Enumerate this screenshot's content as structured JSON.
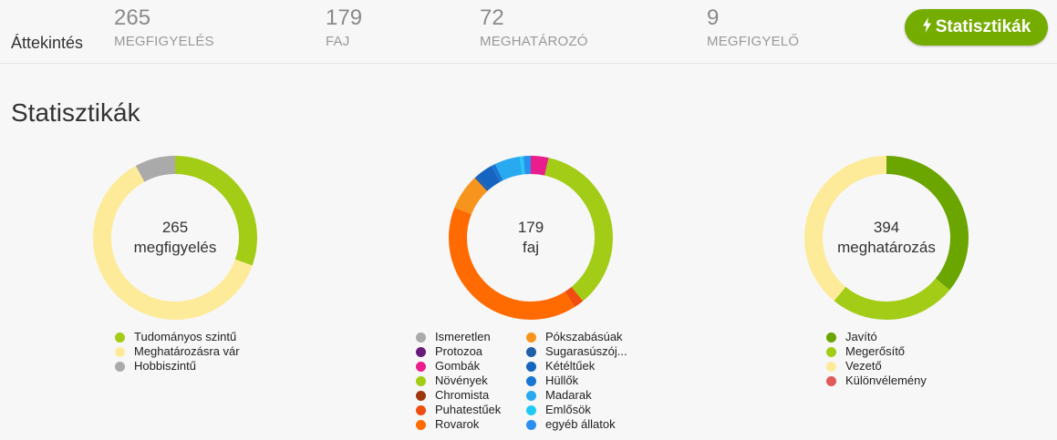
{
  "header": {
    "overview_label": "Áttekintés",
    "stats": [
      {
        "value": "265",
        "label": "MEGFIGYELÉS"
      },
      {
        "value": "179",
        "label": "FAJ"
      },
      {
        "value": "72",
        "label": "MEGHATÁROZÓ"
      },
      {
        "value": "9",
        "label": "MEGFIGYELŐ"
      }
    ],
    "stats_button_label": "Statisztikák"
  },
  "section_title": "Statisztikák",
  "charts": [
    {
      "center_value": "265",
      "center_label": "megfigyelés",
      "segments": [
        {
          "label": "Tudományos szintű",
          "value": 0.305,
          "color": "#a3cc16"
        },
        {
          "label": "Meghatározásra vár",
          "value": 0.615,
          "color": "#fdeb9a"
        },
        {
          "label": "Hobbiszintű",
          "value": 0.08,
          "color": "#aaaaaa"
        }
      ],
      "legend": [
        {
          "label": "Tudományos szintű",
          "color": "#a3cc16"
        },
        {
          "label": "Meghatározásra vár",
          "color": "#fdeb9a"
        },
        {
          "label": "Hobbiszintű",
          "color": "#aaaaaa"
        }
      ]
    },
    {
      "center_value": "179",
      "center_label": "faj",
      "segments": [
        {
          "label": "Gombák",
          "value": 0.035,
          "color": "#e91e8c"
        },
        {
          "label": "Növények",
          "value": 0.355,
          "color": "#a3cc16"
        },
        {
          "label": "Puhatestűek",
          "value": 0.02,
          "color": "#f04e10"
        },
        {
          "label": "Rovarok",
          "value": 0.4,
          "color": "#ff6b00"
        },
        {
          "label": "Pókszabásúak",
          "value": 0.07,
          "color": "#f7941d"
        },
        {
          "label": "Sugarasúszójúak",
          "value": 0.005,
          "color": "#1f5fa8"
        },
        {
          "label": "Kétéltűek",
          "value": 0.035,
          "color": "#1565c0"
        },
        {
          "label": "Hüllők",
          "value": 0.008,
          "color": "#1976d2"
        },
        {
          "label": "Madarak",
          "value": 0.05,
          "color": "#29a9f0"
        },
        {
          "label": "Emlősök",
          "value": 0.007,
          "color": "#23c9f5"
        },
        {
          "label": "egyéb állatok",
          "value": 0.015,
          "color": "#2b8ff0"
        }
      ],
      "legend_left": [
        {
          "label": "Ismeretlen",
          "color": "#aaaaaa"
        },
        {
          "label": "Protozoa",
          "color": "#6a1b7a"
        },
        {
          "label": "Gombák",
          "color": "#e91e8c"
        },
        {
          "label": "Növények",
          "color": "#a3cc16"
        },
        {
          "label": "Chromista",
          "color": "#a0360e"
        },
        {
          "label": "Puhatestűek",
          "color": "#f04e10"
        },
        {
          "label": "Rovarok",
          "color": "#ff6b00"
        }
      ],
      "legend_right": [
        {
          "label": "Pókszabásúak",
          "color": "#f7941d"
        },
        {
          "label": "Sugarasúszój...",
          "color": "#1f5fa8"
        },
        {
          "label": "Kétéltűek",
          "color": "#1565c0"
        },
        {
          "label": "Hüllők",
          "color": "#1976d2"
        },
        {
          "label": "Madarak",
          "color": "#29a9f0"
        },
        {
          "label": "Emlősök",
          "color": "#23c9f5"
        },
        {
          "label": "egyéb állatok",
          "color": "#2b8ff0"
        }
      ]
    },
    {
      "center_value": "394",
      "center_label": "meghatározás",
      "segments": [
        {
          "label": "Javító",
          "value": 0.36,
          "color": "#6aa500"
        },
        {
          "label": "Megerősítő",
          "value": 0.25,
          "color": "#a3cc16"
        },
        {
          "label": "Vezető",
          "value": 0.39,
          "color": "#fdeb9a"
        }
      ],
      "legend": [
        {
          "label": "Javító",
          "color": "#6aa500"
        },
        {
          "label": "Megerősítő",
          "color": "#a3cc16"
        },
        {
          "label": "Vezető",
          "color": "#fdeb9a"
        },
        {
          "label": "Különvélemény",
          "color": "#e05a5a"
        }
      ]
    }
  ]
}
